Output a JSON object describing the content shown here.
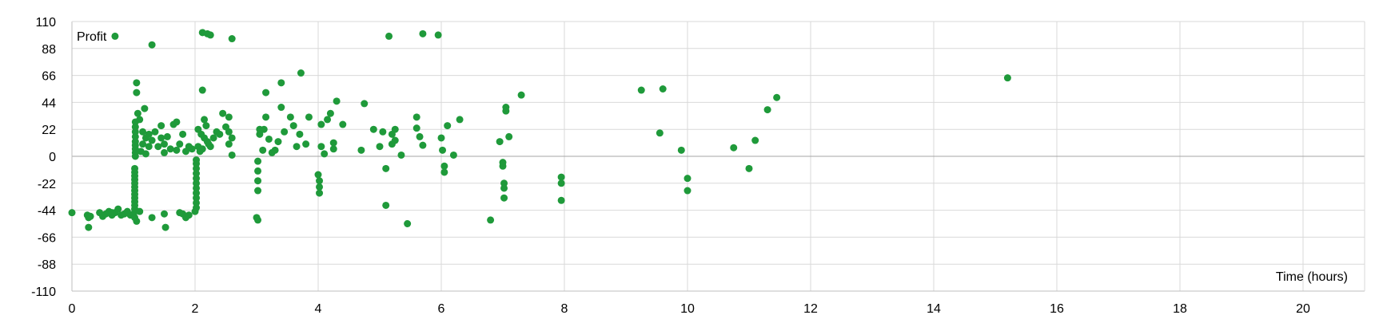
{
  "chart_data": {
    "type": "scatter",
    "title": "",
    "xlabel": "Time (hours)",
    "ylabel": "Profit",
    "xlim": [
      0,
      21
    ],
    "ylim": [
      -110,
      110
    ],
    "xticks": [
      0,
      2,
      4,
      6,
      8,
      10,
      12,
      14,
      16,
      18,
      20
    ],
    "yticks": [
      110,
      88,
      66,
      44,
      22,
      0,
      -22,
      -44,
      -66,
      -88,
      -110
    ],
    "grid": true,
    "legend": "none",
    "colors": {
      "marker": "#1f9a3a",
      "grid": "#d9d9d9",
      "zero_line": "#a6a6a6",
      "axis": "#bfbfbf"
    },
    "series": [
      {
        "points": [
          [
            0.0,
            -46
          ],
          [
            0.25,
            -48
          ],
          [
            0.27,
            -50
          ],
          [
            0.3,
            -49
          ],
          [
            0.27,
            -58
          ],
          [
            0.45,
            -46
          ],
          [
            0.5,
            -49
          ],
          [
            0.55,
            -47
          ],
          [
            0.6,
            -45
          ],
          [
            0.65,
            -48
          ],
          [
            0.7,
            -46
          ],
          [
            0.75,
            -43
          ],
          [
            0.8,
            -48
          ],
          [
            0.85,
            -47
          ],
          [
            0.9,
            -45
          ],
          [
            0.95,
            -48
          ],
          [
            1.0,
            -47
          ],
          [
            1.02,
            -50
          ],
          [
            1.05,
            -53
          ],
          [
            1.1,
            -45
          ],
          [
            1.02,
            -10
          ],
          [
            1.02,
            -13
          ],
          [
            1.02,
            -16
          ],
          [
            1.02,
            -19
          ],
          [
            1.02,
            -22
          ],
          [
            1.02,
            -25
          ],
          [
            1.02,
            -28
          ],
          [
            1.02,
            -31
          ],
          [
            1.02,
            -34
          ],
          [
            1.02,
            -37
          ],
          [
            1.02,
            -40
          ],
          [
            1.02,
            -43
          ],
          [
            1.03,
            0
          ],
          [
            1.03,
            3
          ],
          [
            1.03,
            6
          ],
          [
            1.03,
            9
          ],
          [
            1.03,
            12
          ],
          [
            1.03,
            16
          ],
          [
            1.03,
            20
          ],
          [
            1.03,
            24
          ],
          [
            1.03,
            28
          ],
          [
            1.05,
            52
          ],
          [
            1.05,
            60
          ],
          [
            1.07,
            35
          ],
          [
            1.1,
            30
          ],
          [
            1.12,
            4
          ],
          [
            1.15,
            10
          ],
          [
            1.15,
            20
          ],
          [
            1.18,
            39
          ],
          [
            1.2,
            2
          ],
          [
            1.2,
            15
          ],
          [
            1.25,
            8
          ],
          [
            1.25,
            18
          ],
          [
            1.3,
            13
          ],
          [
            1.3,
            91
          ],
          [
            1.35,
            20
          ],
          [
            1.4,
            8
          ],
          [
            1.45,
            15
          ],
          [
            1.45,
            25
          ],
          [
            1.5,
            3
          ],
          [
            1.5,
            10
          ],
          [
            1.55,
            16
          ],
          [
            1.6,
            6
          ],
          [
            1.65,
            26
          ],
          [
            1.7,
            28
          ],
          [
            1.7,
            5
          ],
          [
            1.75,
            10
          ],
          [
            1.8,
            18
          ],
          [
            1.85,
            4
          ],
          [
            1.9,
            8
          ],
          [
            1.95,
            6
          ],
          [
            1.3,
            -50
          ],
          [
            1.5,
            -47
          ],
          [
            1.52,
            -58
          ],
          [
            1.75,
            -46
          ],
          [
            1.8,
            -47
          ],
          [
            1.85,
            -50
          ],
          [
            1.9,
            -48
          ],
          [
            0.65,
            -46
          ],
          [
            0.7,
            98
          ],
          [
            2.0,
            -45
          ],
          [
            2.02,
            -42
          ],
          [
            2.02,
            -38
          ],
          [
            2.02,
            -34
          ],
          [
            2.02,
            -30
          ],
          [
            2.02,
            -26
          ],
          [
            2.02,
            -22
          ],
          [
            2.02,
            -18
          ],
          [
            2.02,
            -14
          ],
          [
            2.02,
            -10
          ],
          [
            2.02,
            -6
          ],
          [
            2.02,
            -3
          ],
          [
            2.05,
            8
          ],
          [
            2.05,
            22
          ],
          [
            2.08,
            4
          ],
          [
            2.1,
            18
          ],
          [
            2.12,
            54
          ],
          [
            2.12,
            101
          ],
          [
            2.15,
            30
          ],
          [
            2.18,
            25
          ],
          [
            2.2,
            12
          ],
          [
            2.2,
            100
          ],
          [
            2.25,
            8
          ],
          [
            2.25,
            99
          ],
          [
            2.3,
            15
          ],
          [
            2.35,
            20
          ],
          [
            2.4,
            18
          ],
          [
            2.45,
            35
          ],
          [
            2.5,
            24
          ],
          [
            2.55,
            10
          ],
          [
            2.55,
            20
          ],
          [
            2.55,
            32
          ],
          [
            2.6,
            1
          ],
          [
            2.6,
            15
          ],
          [
            2.6,
            96
          ],
          [
            2.12,
            6
          ],
          [
            2.15,
            15
          ],
          [
            2.22,
            10
          ],
          [
            3.0,
            -50
          ],
          [
            3.02,
            -52
          ],
          [
            3.02,
            -28
          ],
          [
            3.02,
            -20
          ],
          [
            3.02,
            -12
          ],
          [
            3.02,
            -4
          ],
          [
            3.05,
            18
          ],
          [
            3.05,
            22
          ],
          [
            3.1,
            5
          ],
          [
            3.12,
            22
          ],
          [
            3.15,
            52
          ],
          [
            3.15,
            32
          ],
          [
            3.2,
            14
          ],
          [
            3.25,
            3
          ],
          [
            3.3,
            5
          ],
          [
            3.35,
            12
          ],
          [
            3.4,
            40
          ],
          [
            3.4,
            60
          ],
          [
            3.45,
            20
          ],
          [
            3.55,
            32
          ],
          [
            3.6,
            25
          ],
          [
            3.65,
            8
          ],
          [
            3.7,
            18
          ],
          [
            3.72,
            68
          ],
          [
            3.8,
            10
          ],
          [
            3.85,
            32
          ],
          [
            4.0,
            -15
          ],
          [
            4.02,
            -20
          ],
          [
            4.02,
            -25
          ],
          [
            4.02,
            -30
          ],
          [
            4.05,
            8
          ],
          [
            4.05,
            26
          ],
          [
            4.1,
            2
          ],
          [
            4.15,
            30
          ],
          [
            4.2,
            35
          ],
          [
            4.25,
            6
          ],
          [
            4.25,
            11
          ],
          [
            4.3,
            45
          ],
          [
            4.4,
            26
          ],
          [
            4.7,
            5
          ],
          [
            4.75,
            43
          ],
          [
            4.9,
            22
          ],
          [
            5.0,
            8
          ],
          [
            5.05,
            20
          ],
          [
            5.1,
            -10
          ],
          [
            5.1,
            -40
          ],
          [
            5.15,
            98
          ],
          [
            5.2,
            18
          ],
          [
            5.2,
            10
          ],
          [
            5.25,
            22
          ],
          [
            5.25,
            13
          ],
          [
            5.35,
            1
          ],
          [
            5.45,
            -55
          ],
          [
            5.6,
            23
          ],
          [
            5.6,
            32
          ],
          [
            5.65,
            16
          ],
          [
            5.7,
            9
          ],
          [
            5.7,
            100
          ],
          [
            5.95,
            99
          ],
          [
            6.0,
            15
          ],
          [
            6.02,
            5
          ],
          [
            6.05,
            -8
          ],
          [
            6.05,
            -13
          ],
          [
            6.1,
            25
          ],
          [
            6.2,
            1
          ],
          [
            6.3,
            30
          ],
          [
            6.8,
            -52
          ],
          [
            6.95,
            12
          ],
          [
            7.0,
            -5
          ],
          [
            7.0,
            -8
          ],
          [
            7.02,
            -22
          ],
          [
            7.02,
            -26
          ],
          [
            7.02,
            -34
          ],
          [
            7.05,
            40
          ],
          [
            7.05,
            37
          ],
          [
            7.1,
            16
          ],
          [
            7.3,
            50
          ],
          [
            7.95,
            -17
          ],
          [
            7.95,
            -22
          ],
          [
            7.95,
            -36
          ],
          [
            9.25,
            54
          ],
          [
            9.55,
            19
          ],
          [
            9.6,
            55
          ],
          [
            9.9,
            5
          ],
          [
            10.0,
            -18
          ],
          [
            10.0,
            -28
          ],
          [
            10.75,
            7
          ],
          [
            11.0,
            -10
          ],
          [
            11.1,
            13
          ],
          [
            11.3,
            38
          ],
          [
            11.45,
            48
          ],
          [
            15.2,
            64
          ]
        ]
      }
    ]
  }
}
